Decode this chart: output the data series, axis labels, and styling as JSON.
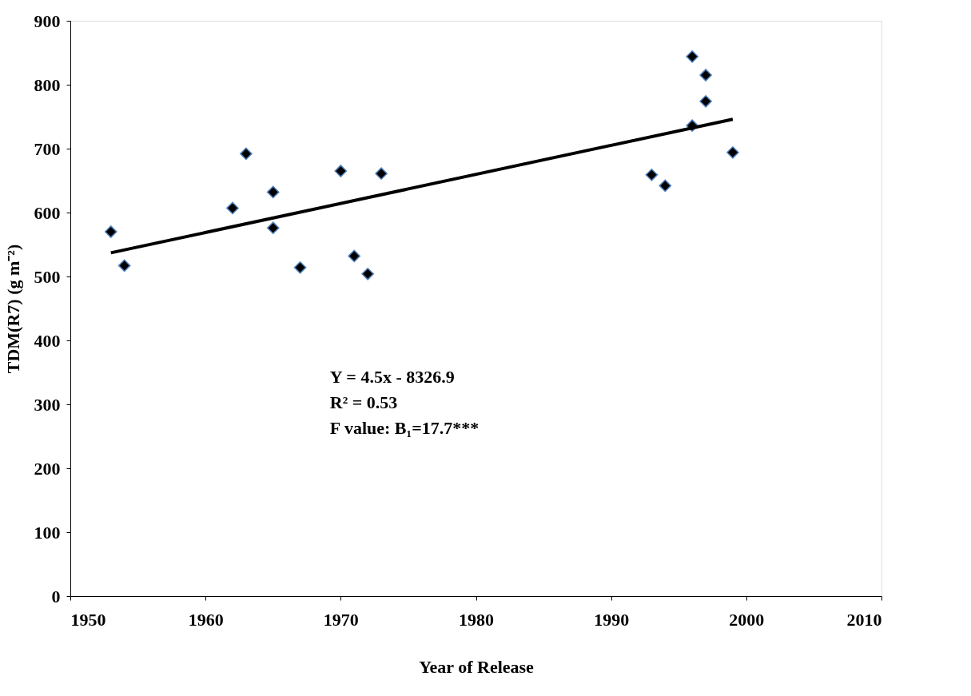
{
  "chart_data": {
    "type": "scatter",
    "xlabel": "Year of Release",
    "ylabel": "TDM(R7) (g m⁻²)",
    "xlim": [
      1950,
      2010
    ],
    "xticks": [
      1950,
      1960,
      1970,
      1980,
      1990,
      2000,
      2010
    ],
    "ylim": [
      0,
      900
    ],
    "yticks": [
      0,
      100,
      200,
      300,
      400,
      500,
      600,
      700,
      800,
      900
    ],
    "grid": false,
    "series": [
      {
        "color": "#000000",
        "marker": "diamond",
        "x": [
          1953,
          1954,
          1962,
          1963,
          1965,
          1965,
          1967,
          1970,
          1971,
          1972,
          1973,
          1993,
          1994,
          1996,
          1996,
          1997,
          1997,
          1999
        ],
        "values": [
          570,
          517,
          607,
          692,
          632,
          576,
          514,
          665,
          532,
          504,
          661,
          659,
          642,
          844,
          736,
          815,
          774,
          694
        ]
      },
      {
        "type": "line",
        "color": "#000000",
        "line_style": "solid",
        "x": [
          1953,
          1999
        ],
        "values": [
          537,
          746
        ]
      }
    ],
    "annotations": [
      "Y = 4.5x - 8326.9",
      "R² = 0.53",
      "F value:  B₁=17.7***"
    ]
  }
}
